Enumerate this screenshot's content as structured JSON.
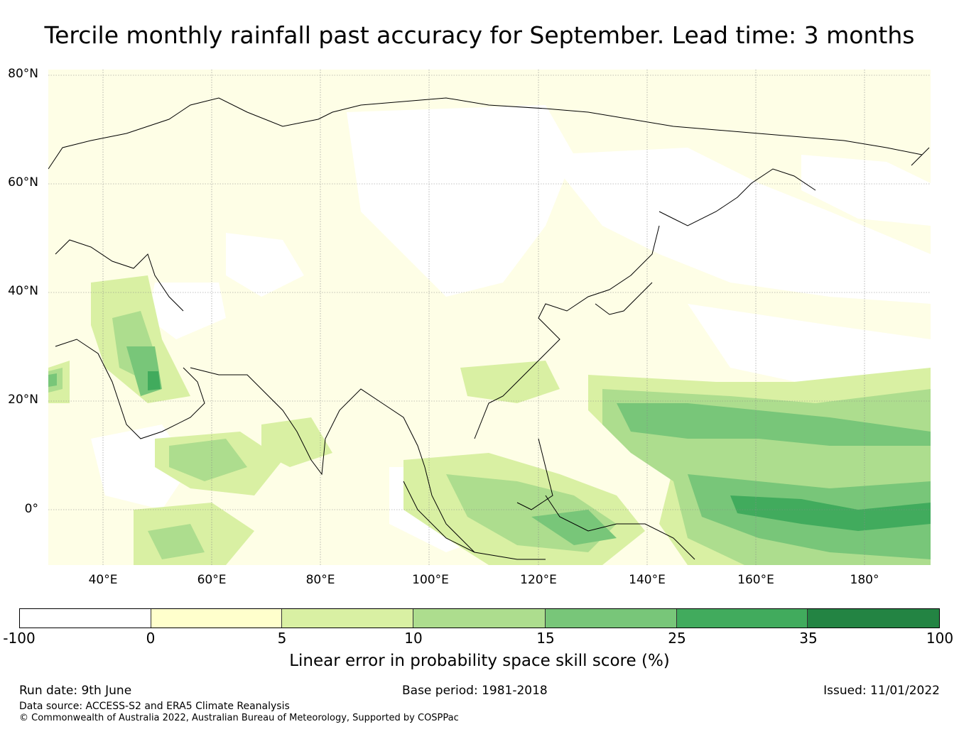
{
  "title": "Tercile monthly rainfall past accuracy for September. Lead time: 3 months",
  "map": {
    "lat_labels": [
      "80°N",
      "60°N",
      "40°N",
      "20°N",
      "0°"
    ],
    "lon_labels": [
      "40°E",
      "60°E",
      "80°E",
      "100°E",
      "120°E",
      "140°E",
      "160°E",
      "180°"
    ]
  },
  "colorbar": {
    "label": "Linear error in probability space skill score (%)",
    "ticks": [
      "-100",
      "0",
      "5",
      "10",
      "15",
      "25",
      "35",
      "100"
    ],
    "colors": [
      "#ffffff",
      "#ffffcc",
      "#d9f0a3",
      "#addd8e",
      "#78c679",
      "#41ab5d",
      "#238443"
    ]
  },
  "footer": {
    "run_date": "Run date: 9th June",
    "base_period": "Base period: 1981-2018",
    "issued": "Issued: 11/01/2022",
    "data_source": "Data source: ACCESS-S2 and ERA5 Climate Reanalysis",
    "copyright": "© Commonwealth of Australia 2022, Australian Bureau of Meteorology, Supported by COSPPac"
  }
}
